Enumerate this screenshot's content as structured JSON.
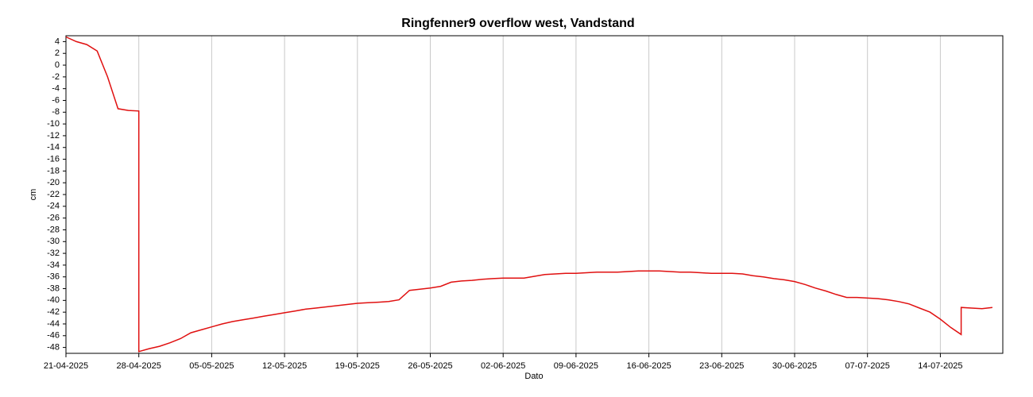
{
  "chart_data": {
    "type": "line",
    "title": "Ringfenner9 overflow west, Vandstand",
    "x_label": "Dato",
    "y_label": "cm",
    "color": "#e01010",
    "grid": true,
    "xlim": [
      "2025-04-21",
      "2025-07-20"
    ],
    "xticks": [
      {
        "value": "2025-04-21",
        "label": "21-04-2025"
      },
      {
        "value": "2025-04-28",
        "label": "28-04-2025"
      },
      {
        "value": "2025-05-05",
        "label": "05-05-2025"
      },
      {
        "value": "2025-05-12",
        "label": "12-05-2025"
      },
      {
        "value": "2025-05-19",
        "label": "19-05-2025"
      },
      {
        "value": "2025-05-26",
        "label": "26-05-2025"
      },
      {
        "value": "2025-06-02",
        "label": "02-06-2025"
      },
      {
        "value": "2025-06-09",
        "label": "09-06-2025"
      },
      {
        "value": "2025-06-16",
        "label": "16-06-2025"
      },
      {
        "value": "2025-06-23",
        "label": "23-06-2025"
      },
      {
        "value": "2025-06-30",
        "label": "30-06-2025"
      },
      {
        "value": "2025-07-07",
        "label": "07-07-2025"
      },
      {
        "value": "2025-07-14",
        "label": "14-07-2025"
      }
    ],
    "ylim": [
      -49,
      5
    ],
    "yticks": [
      4,
      2,
      0,
      -2,
      -4,
      -6,
      -8,
      -10,
      -12,
      -14,
      -16,
      -18,
      -20,
      -22,
      -24,
      -26,
      -28,
      -30,
      -32,
      -34,
      -36,
      -38,
      -40,
      -42,
      -44,
      -46,
      -48
    ],
    "x": [
      "2025-04-21",
      "2025-04-22",
      "2025-04-23",
      "2025-04-24",
      "2025-04-25",
      "2025-04-26",
      "2025-04-27",
      "2025-04-28",
      "2025-04-28",
      "2025-04-29",
      "2025-04-30",
      "2025-05-01",
      "2025-05-02",
      "2025-05-03",
      "2025-05-04",
      "2025-05-05",
      "2025-05-06",
      "2025-05-07",
      "2025-05-08",
      "2025-05-09",
      "2025-05-10",
      "2025-05-11",
      "2025-05-12",
      "2025-05-13",
      "2025-05-14",
      "2025-05-15",
      "2025-05-16",
      "2025-05-17",
      "2025-05-18",
      "2025-05-19",
      "2025-05-20",
      "2025-05-21",
      "2025-05-22",
      "2025-05-23",
      "2025-05-24",
      "2025-05-25",
      "2025-05-26",
      "2025-05-27",
      "2025-05-28",
      "2025-05-29",
      "2025-05-30",
      "2025-05-31",
      "2025-06-01",
      "2025-06-02",
      "2025-06-03",
      "2025-06-04",
      "2025-06-05",
      "2025-06-06",
      "2025-06-07",
      "2025-06-08",
      "2025-06-09",
      "2025-06-10",
      "2025-06-11",
      "2025-06-12",
      "2025-06-13",
      "2025-06-14",
      "2025-06-15",
      "2025-06-16",
      "2025-06-17",
      "2025-06-18",
      "2025-06-19",
      "2025-06-20",
      "2025-06-21",
      "2025-06-22",
      "2025-06-23",
      "2025-06-24",
      "2025-06-25",
      "2025-06-26",
      "2025-06-27",
      "2025-06-28",
      "2025-06-29",
      "2025-06-30",
      "2025-07-01",
      "2025-07-02",
      "2025-07-03",
      "2025-07-04",
      "2025-07-05",
      "2025-07-06",
      "2025-07-07",
      "2025-07-08",
      "2025-07-09",
      "2025-07-10",
      "2025-07-11",
      "2025-07-12",
      "2025-07-13",
      "2025-07-14",
      "2025-07-15",
      "2025-07-16",
      "2025-07-16",
      "2025-07-17",
      "2025-07-18",
      "2025-07-19"
    ],
    "values": [
      4.8,
      4.0,
      3.5,
      2.4,
      -2,
      -7.4,
      -7.7,
      -7.8,
      -48.7,
      -48.2,
      -47.8,
      -47.2,
      -46.5,
      -45.5,
      -45,
      -44.5,
      -44,
      -43.6,
      -43.3,
      -43,
      -42.7,
      -42.4,
      -42.1,
      -41.8,
      -41.5,
      -41.3,
      -41.1,
      -40.9,
      -40.7,
      -40.5,
      -40.4,
      -40.3,
      -40.2,
      -39.9,
      -38.3,
      -38.1,
      -37.9,
      -37.6,
      -36.9,
      -36.7,
      -36.6,
      -36.4,
      -36.3,
      -36.2,
      -36.2,
      -36.2,
      -35.9,
      -35.6,
      -35.5,
      -35.4,
      -35.4,
      -35.3,
      -35.2,
      -35.2,
      -35.2,
      -35.1,
      -35.0,
      -35.0,
      -35.0,
      -35.1,
      -35.2,
      -35.2,
      -35.3,
      -35.4,
      -35.4,
      -35.4,
      -35.5,
      -35.8,
      -36.0,
      -36.3,
      -36.5,
      -36.8,
      -37.3,
      -37.9,
      -38.4,
      -39.0,
      -39.5,
      -39.5,
      -39.6,
      -39.7,
      -39.9,
      -40.2,
      -40.6,
      -41.3,
      -42.0,
      -43.2,
      -44.6,
      -45.8,
      -41.2,
      -41.3,
      -41.4,
      -41.2
    ]
  }
}
